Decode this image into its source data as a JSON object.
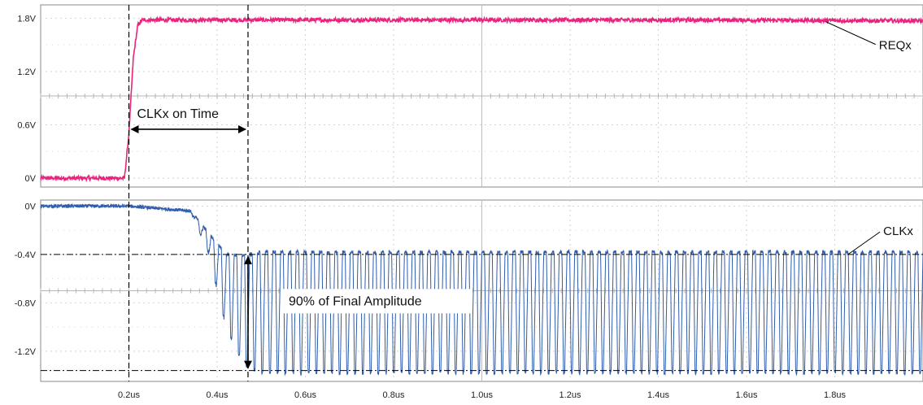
{
  "chart_data": [
    {
      "type": "line",
      "panel": "top",
      "x_unit": "us",
      "ylim": [
        -0.1,
        1.95
      ],
      "xlim": [
        0,
        2.0
      ],
      "y_ticks": [
        "1.8V",
        "1.2V",
        "0.6V",
        "0V"
      ],
      "y_tick_values": [
        1.8,
        1.2,
        0.6,
        0.0
      ],
      "grid": true,
      "series": [
        {
          "name": "REQx",
          "color": "#e8247c",
          "x": [
            0.0,
            0.19,
            0.2,
            0.21,
            0.22,
            0.23,
            0.5,
            1.0,
            1.5,
            2.0
          ],
          "values": [
            0.0,
            0.0,
            0.5,
            1.35,
            1.72,
            1.78,
            1.78,
            1.78,
            1.78,
            1.77
          ]
        }
      ],
      "annotations": {
        "span_label": "CLKx on Time",
        "span_x": [
          0.2,
          0.47
        ],
        "span_y": 0.55,
        "series_label": "REQx"
      }
    },
    {
      "type": "line",
      "panel": "bottom",
      "x_unit": "us",
      "ylim": [
        -1.45,
        0.05
      ],
      "xlim": [
        0,
        2.0
      ],
      "x_ticks": [
        "0.2us",
        "0.4us",
        "0.6us",
        "0.8us",
        "1.0us",
        "1.2us",
        "1.4us",
        "1.6us",
        "1.8us"
      ],
      "x_tick_values": [
        0.2,
        0.4,
        0.6,
        0.8,
        1.0,
        1.2,
        1.4,
        1.6,
        1.8
      ],
      "y_ticks": [
        "0V",
        "-0.4V",
        "-0.8V",
        "-1.2V"
      ],
      "y_tick_values": [
        0.0,
        -0.4,
        -0.8,
        -1.2
      ],
      "grid": true,
      "series": [
        {
          "name": "CLKx",
          "color": "#2f5cab",
          "envelope_x": [
            0.0,
            0.2,
            0.34,
            0.38,
            0.42,
            0.46,
            0.5,
            2.0
          ],
          "envelope_center": [
            0.0,
            0.0,
            -0.04,
            -0.3,
            -0.7,
            -0.86,
            -0.88,
            -0.88
          ],
          "envelope_amplitude": [
            0.0,
            0.0,
            0.0,
            0.08,
            0.3,
            0.45,
            0.5,
            0.5
          ],
          "frequency_mhz": 57
        }
      ],
      "annotations": {
        "reference_levels": [
          -0.4,
          -1.36
        ],
        "marker_x": 0.47,
        "span_label": "90% of Final Amplitude",
        "series_label": "CLKx"
      }
    }
  ],
  "cursors_x": [
    0.2,
    0.47
  ]
}
